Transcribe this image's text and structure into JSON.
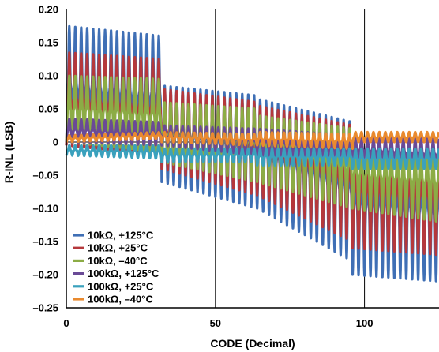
{
  "chart_data": {
    "type": "line",
    "xlabel": "CODE (Decimal)",
    "ylabel": "R-INL (LSB)",
    "xlim": [
      0,
      125
    ],
    "ylim": [
      -0.25,
      0.2
    ],
    "x_ticks": [
      0,
      50,
      100
    ],
    "y_ticks": [
      0.2,
      0.15,
      0.1,
      0.05,
      0,
      -0.05,
      -0.1,
      -0.15,
      -0.2,
      -0.25
    ],
    "y_tick_labels": [
      "0.20",
      "0.15",
      "0.10",
      "0.05",
      "0",
      "–0.05",
      "–0.10",
      "–0.15",
      "–0.20",
      "–0.25"
    ],
    "grid": {
      "vertical": [
        50,
        100
      ],
      "horizontal": [
        0
      ]
    },
    "legend_position": "bottom-left",
    "period_codes": 2,
    "segments": [
      {
        "start": 0,
        "end": 32
      },
      {
        "start": 32,
        "end": 64
      },
      {
        "start": 64,
        "end": 96
      },
      {
        "start": 96,
        "end": 125
      }
    ],
    "series": [
      {
        "name": "10kΩ, +125°C",
        "color": "#3f6fb5",
        "segments": [
          {
            "peak": [
              0.175,
              0.16
            ],
            "trough": [
              -0.005,
              -0.02
            ]
          },
          {
            "peak": [
              0.085,
              0.07
            ],
            "trough": [
              -0.06,
              -0.1
            ]
          },
          {
            "peak": [
              0.065,
              0.03
            ],
            "trough": [
              -0.1,
              -0.18
            ]
          },
          {
            "peak": [
              0.005,
              0.0
            ],
            "trough": [
              -0.2,
              -0.21
            ]
          }
        ]
      },
      {
        "name": "10kΩ, +25°C",
        "color": "#b5383c",
        "segments": [
          {
            "peak": [
              0.135,
              0.125
            ],
            "trough": [
              -0.005,
              -0.02
            ]
          },
          {
            "peak": [
              0.08,
              0.06
            ],
            "trough": [
              -0.04,
              -0.08
            ]
          },
          {
            "peak": [
              0.055,
              0.025
            ],
            "trough": [
              -0.08,
              -0.15
            ]
          },
          {
            "peak": [
              0.005,
              0.0
            ],
            "trough": [
              -0.16,
              -0.17
            ]
          }
        ]
      },
      {
        "name": "10kΩ, –40°C",
        "color": "#8cac45",
        "segments": [
          {
            "peak": [
              0.1,
              0.095
            ],
            "trough": [
              0.0,
              -0.015
            ]
          },
          {
            "peak": [
              0.06,
              0.05
            ],
            "trough": [
              -0.03,
              -0.06
            ]
          },
          {
            "peak": [
              0.04,
              0.02
            ],
            "trough": [
              -0.06,
              -0.1
            ]
          },
          {
            "peak": [
              0.005,
              0.0
            ],
            "trough": [
              -0.1,
              -0.12
            ]
          }
        ]
      },
      {
        "name": "100kΩ, +125°C",
        "color": "#6a4a96",
        "segments": [
          {
            "peak": [
              0.035,
              0.03
            ],
            "trough": [
              0.0,
              -0.005
            ]
          },
          {
            "peak": [
              0.025,
              0.02
            ],
            "trough": [
              -0.005,
              -0.02
            ]
          },
          {
            "peak": [
              0.02,
              0.01
            ],
            "trough": [
              -0.02,
              -0.035
            ]
          },
          {
            "peak": [
              0.01,
              0.005
            ],
            "trough": [
              -0.03,
              -0.04
            ]
          }
        ]
      },
      {
        "name": "100kΩ, +25°C",
        "color": "#3aa1bd",
        "segments": [
          {
            "peak": [
              -0.005,
              -0.005
            ],
            "trough": [
              -0.02,
              -0.025
            ]
          },
          {
            "peak": [
              -0.01,
              -0.01
            ],
            "trough": [
              -0.03,
              -0.03
            ]
          },
          {
            "peak": [
              -0.01,
              -0.01
            ],
            "trough": [
              -0.035,
              -0.035
            ]
          },
          {
            "peak": [
              -0.01,
              -0.01
            ],
            "trough": [
              -0.04,
              -0.04
            ]
          }
        ]
      },
      {
        "name": "100kΩ, –40°C",
        "color": "#e98a2f",
        "segments": [
          {
            "peak": [
              0.01,
              0.015
            ],
            "trough": [
              0.0,
              0.005
            ]
          },
          {
            "peak": [
              0.015,
              0.012
            ],
            "trough": [
              0.0,
              -0.005
            ]
          },
          {
            "peak": [
              0.015,
              0.012
            ],
            "trough": [
              -0.005,
              -0.01
            ]
          },
          {
            "peak": [
              0.015,
              0.015
            ],
            "trough": [
              0.0,
              0.0
            ]
          }
        ]
      }
    ]
  }
}
